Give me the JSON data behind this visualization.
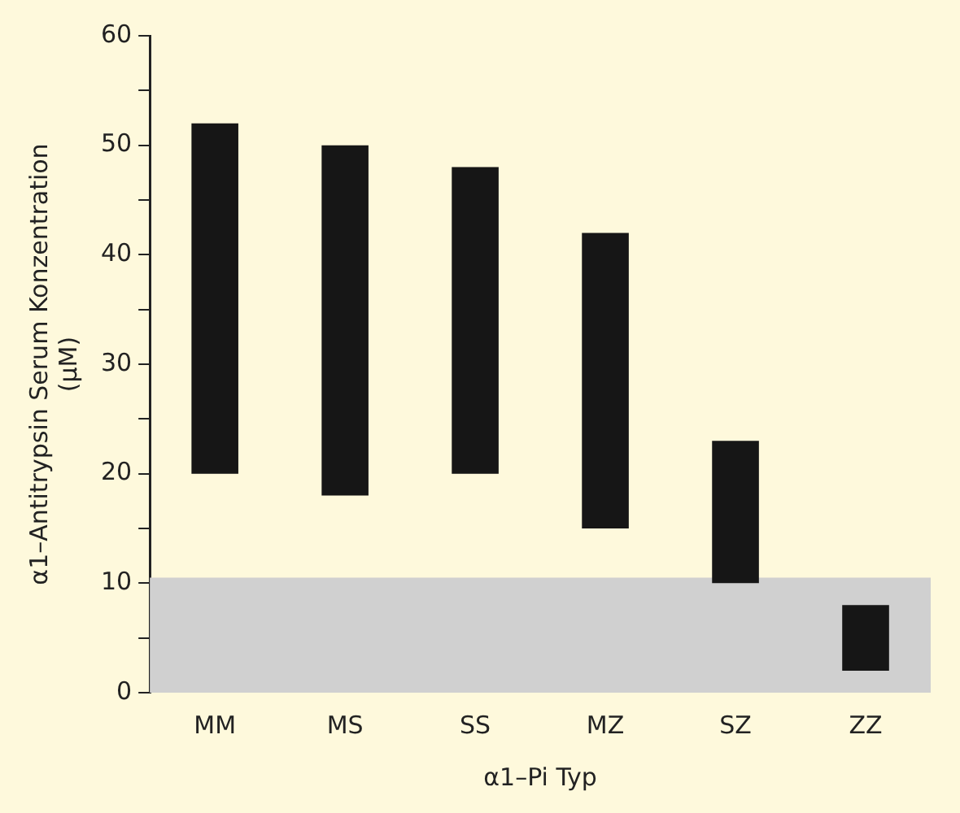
{
  "chart_data": {
    "type": "bar",
    "xlabel": "α1–Pi Typ",
    "ylabel": "α1–Antitrypsin Serum Konzentration\n(µM)",
    "categories": [
      "MM",
      "MS",
      "SS",
      "MZ",
      "SZ",
      "ZZ"
    ],
    "values": [
      32,
      32,
      28,
      27,
      13,
      6
    ],
    "base": [
      20,
      18,
      20,
      15,
      10,
      2
    ],
    "color": "#161616",
    "ylim": [
      0,
      60
    ],
    "yticks": [
      0,
      {
        "value": 5,
        "label": null
      },
      10,
      {
        "value": 15,
        "label": null
      },
      20,
      {
        "value": 25,
        "label": null
      },
      30,
      {
        "value": 35,
        "label": null
      },
      40,
      {
        "value": 45,
        "label": null
      },
      50,
      {
        "value": 55,
        "label": null
      },
      60
    ],
    "bands": [
      {
        "axis": "y",
        "from": 0,
        "to": 10.5,
        "color": "#d0d0d0"
      }
    ],
    "grid": false,
    "legend": false
  }
}
